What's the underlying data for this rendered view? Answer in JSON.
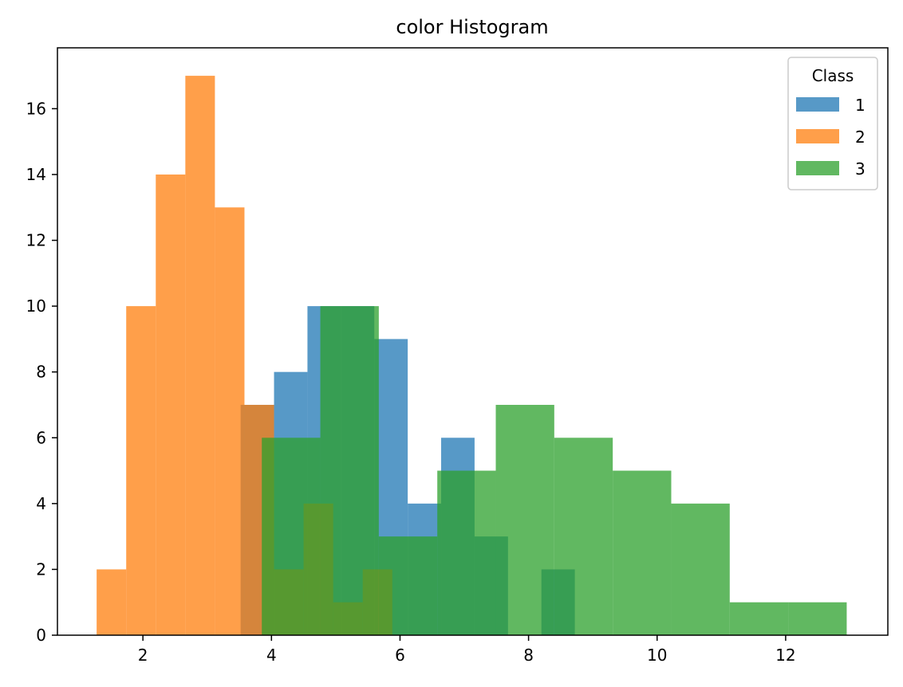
{
  "chart_data": {
    "type": "bar",
    "title": "color Histogram",
    "xlabel": "",
    "ylabel": "",
    "xlim": [
      0.67,
      13.59
    ],
    "ylim": [
      0,
      17.85
    ],
    "xticks": [
      2,
      4,
      6,
      8,
      10,
      12
    ],
    "yticks": [
      0,
      2,
      4,
      6,
      8,
      10,
      12,
      14,
      16
    ],
    "grid": false,
    "legend": {
      "title": "Class",
      "placement": "top-right"
    },
    "series": [
      {
        "name": "1",
        "color": "#1f77b4",
        "opacity": 0.75,
        "bins": [
          3.52,
          4.04,
          4.56,
          5.08,
          5.6,
          6.12,
          6.64,
          7.16,
          7.68,
          8.2,
          8.72
        ],
        "counts": [
          7,
          8,
          10,
          10,
          9,
          4,
          6,
          3,
          0,
          2
        ]
      },
      {
        "name": "2",
        "color": "#ff7f0e",
        "opacity": 0.75,
        "bins": [
          1.28,
          1.74,
          2.2,
          2.66,
          3.12,
          3.58,
          4.04,
          4.5,
          4.96,
          5.42,
          5.88
        ],
        "counts": [
          2,
          10,
          14,
          17,
          13,
          7,
          2,
          4,
          1,
          2
        ]
      },
      {
        "name": "3",
        "color": "#2ca02c",
        "opacity": 0.75,
        "bins": [
          3.85,
          4.76,
          5.67,
          6.58,
          7.49,
          8.4,
          9.31,
          10.22,
          11.13,
          12.04,
          12.95
        ],
        "counts": [
          6,
          10,
          3,
          5,
          7,
          6,
          5,
          4,
          1,
          1
        ]
      }
    ]
  }
}
